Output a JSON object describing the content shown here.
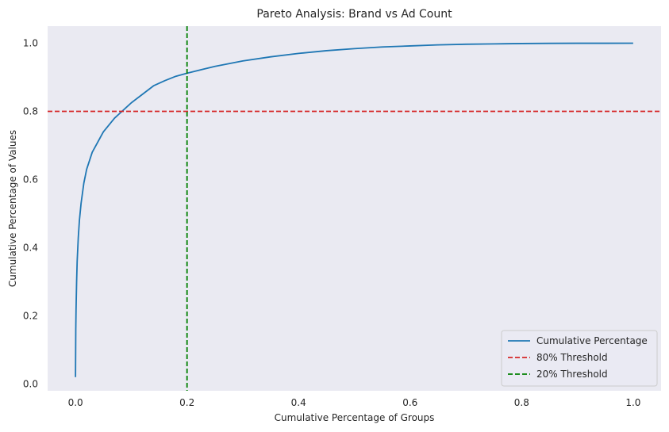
{
  "chart_data": {
    "type": "line",
    "title": "Pareto Analysis: Brand vs Ad Count",
    "xlabel": "Cumulative Percentage of Groups",
    "ylabel": "Cumulative Percentage of Values",
    "xlim": [
      -0.05,
      1.05
    ],
    "ylim": [
      -0.02,
      1.05
    ],
    "x_ticks": [
      0.0,
      0.2,
      0.4,
      0.6,
      0.8,
      1.0
    ],
    "x_tick_labels": [
      "0.0",
      "0.2",
      "0.4",
      "0.6",
      "0.8",
      "1.0"
    ],
    "y_ticks": [
      0.0,
      0.2,
      0.4,
      0.6,
      0.8,
      1.0
    ],
    "y_tick_labels": [
      "0.0",
      "0.2",
      "0.4",
      "0.6",
      "0.8",
      "1.0"
    ],
    "grid": false,
    "legend_position": "lower-right",
    "background_color": "#eaeaf2",
    "series": [
      {
        "name": "Cumulative Percentage",
        "color": "#1f77b4",
        "style": "solid",
        "x": [
          0.0,
          0.0005,
          0.001,
          0.002,
          0.003,
          0.005,
          0.007,
          0.01,
          0.015,
          0.02,
          0.03,
          0.04,
          0.05,
          0.06,
          0.07,
          0.08,
          0.09,
          0.1,
          0.12,
          0.14,
          0.16,
          0.18,
          0.2,
          0.25,
          0.3,
          0.35,
          0.4,
          0.45,
          0.5,
          0.55,
          0.6,
          0.65,
          0.7,
          0.75,
          0.8,
          0.85,
          0.9,
          0.95,
          1.0
        ],
        "y": [
          0.02,
          0.16,
          0.22,
          0.3,
          0.36,
          0.43,
          0.48,
          0.53,
          0.59,
          0.63,
          0.68,
          0.71,
          0.74,
          0.76,
          0.78,
          0.795,
          0.81,
          0.825,
          0.85,
          0.875,
          0.89,
          0.903,
          0.912,
          0.932,
          0.948,
          0.96,
          0.97,
          0.978,
          0.984,
          0.989,
          0.992,
          0.995,
          0.997,
          0.998,
          0.999,
          0.9995,
          0.9998,
          0.9999,
          1.0
        ]
      },
      {
        "name": "80% Threshold",
        "color": "#d62728",
        "style": "dashed",
        "orientation": "horizontal",
        "value": 0.8
      },
      {
        "name": "20% Threshold",
        "color": "#008000",
        "style": "dashed",
        "orientation": "vertical",
        "value": 0.2
      }
    ]
  }
}
